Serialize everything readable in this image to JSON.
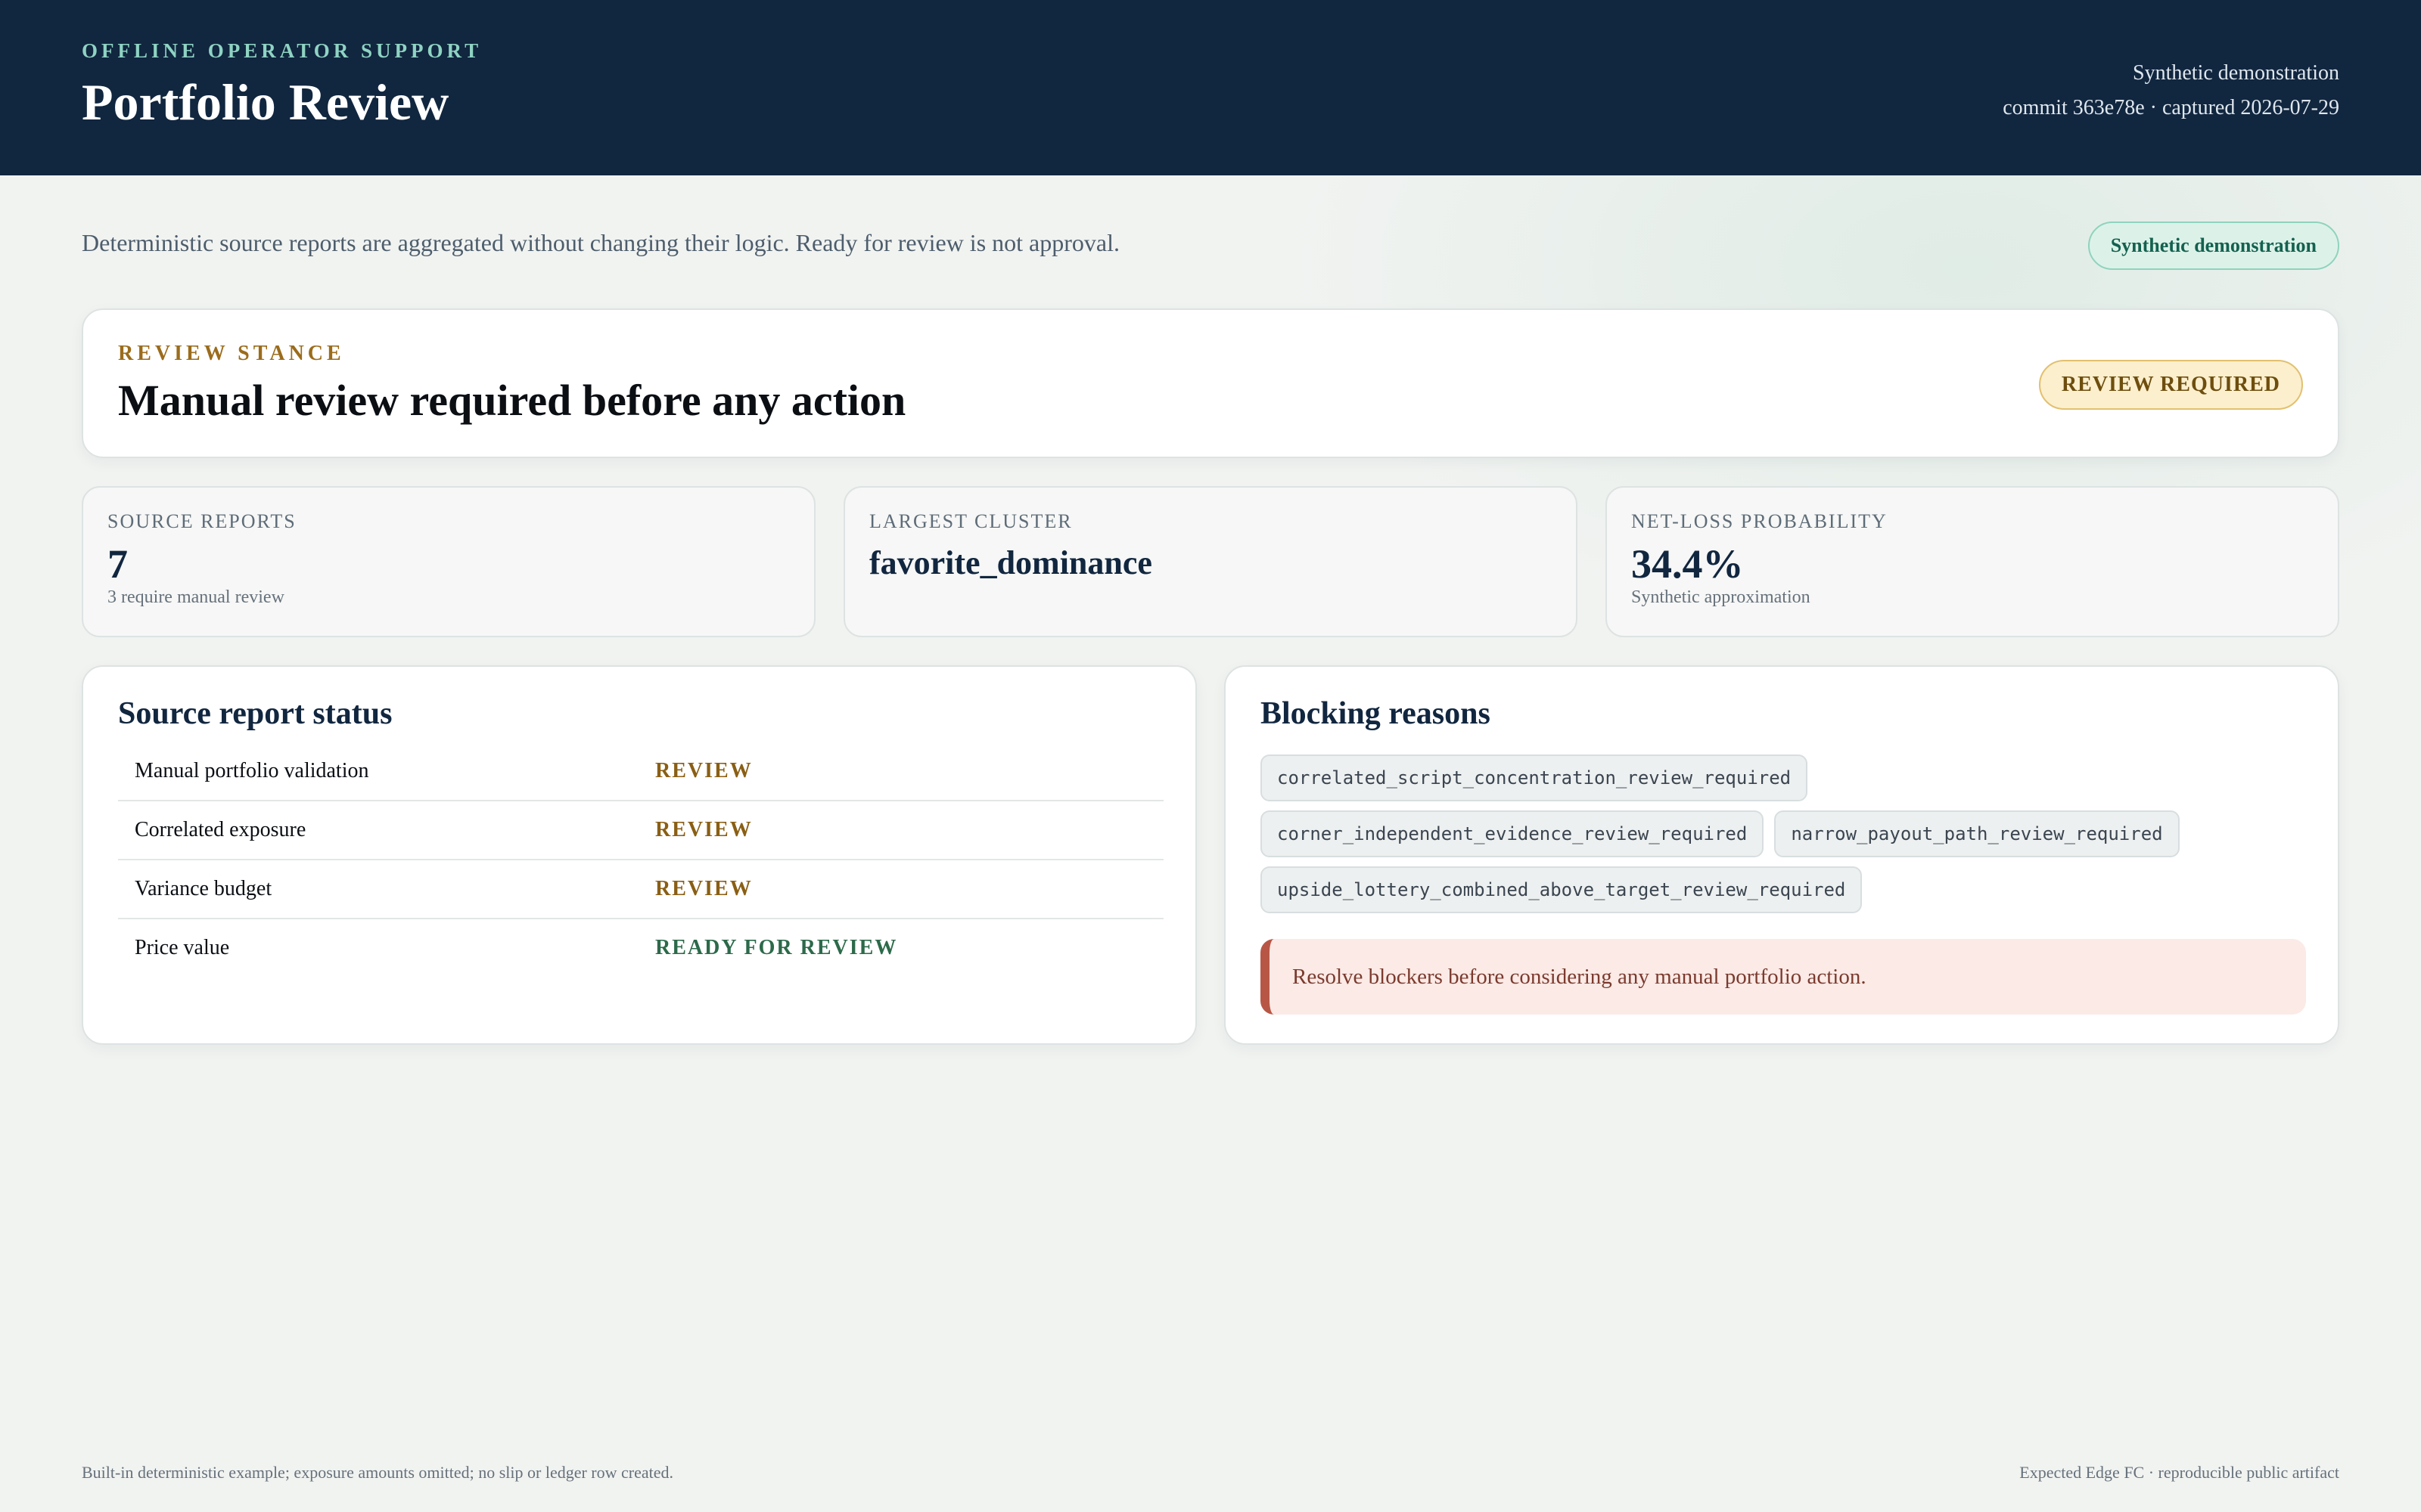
{
  "header": {
    "eyebrow": "OFFLINE OPERATOR SUPPORT",
    "title": "Portfolio Review",
    "meta_line1": "Synthetic demonstration",
    "meta_line2": "commit 363e78e · captured 2026-07-29"
  },
  "intro": {
    "text": "Deterministic source reports are aggregated without changing their logic. Ready for review is not approval.",
    "badge": "Synthetic demonstration"
  },
  "stance": {
    "label": "REVIEW STANCE",
    "headline": "Manual review required before any action",
    "badge": "REVIEW REQUIRED"
  },
  "metrics": [
    {
      "label": "SOURCE REPORTS",
      "value": "7",
      "note": "3 require manual review"
    },
    {
      "label": "LARGEST CLUSTER",
      "value": "favorite_dominance",
      "note": ""
    },
    {
      "label": "NET-LOSS PROBABILITY",
      "value": "34.4%",
      "note": "Synthetic approximation"
    }
  ],
  "source_status": {
    "title": "Source report status",
    "rows": [
      {
        "name": "Manual portfolio validation",
        "status": "REVIEW"
      },
      {
        "name": "Correlated exposure",
        "status": "REVIEW"
      },
      {
        "name": "Variance budget",
        "status": "REVIEW"
      },
      {
        "name": "Price value",
        "status": "READY FOR REVIEW"
      }
    ]
  },
  "blocking": {
    "title": "Blocking reasons",
    "chips": [
      "correlated_script_concentration_review_required",
      "corner_independent_evidence_review_required",
      "narrow_payout_path_review_required",
      "upside_lottery_combined_above_target_review_required"
    ],
    "alert": "Resolve blockers before considering any manual portfolio action."
  },
  "footer": {
    "left": "Built-in deterministic example; exposure amounts omitted; no slip or ledger row created.",
    "right": "Expected Edge FC · reproducible public artifact"
  },
  "colors": {
    "header_bg": "#11263f",
    "accent_teal": "#8fd3c3",
    "review_gold": "#8a5f14",
    "ready_green": "#2c6a4a",
    "alert_red": "#b85646"
  }
}
